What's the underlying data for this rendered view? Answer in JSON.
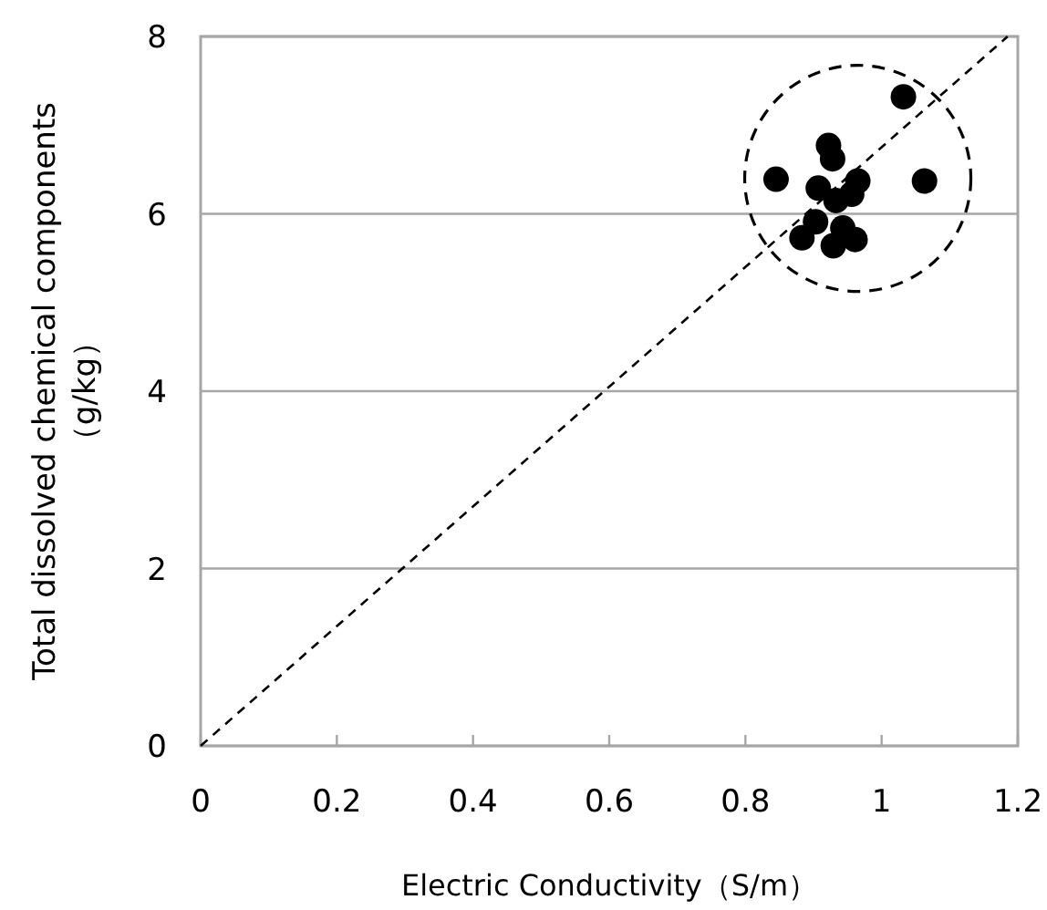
{
  "chart_data": {
    "type": "scatter",
    "xlabel": "Electric Conductivity（S/m）",
    "ylabel": "Total dissolved chemical components\n（g/kg）",
    "xlim": [
      0,
      1.2
    ],
    "xticks": [
      0,
      0.2,
      0.4,
      0.6,
      0.8,
      1,
      1.2
    ],
    "ylim": [
      0,
      8
    ],
    "yticks": [
      0,
      2,
      4,
      6,
      8
    ],
    "grid": "y",
    "series": [
      {
        "color": "#000000",
        "marker": "circle",
        "x": [
          1.032,
          0.845,
          1.063,
          0.922,
          0.928,
          0.965,
          0.907,
          0.883,
          0.961,
          0.929,
          0.933,
          0.943,
          0.956,
          0.903
        ],
        "values": [
          7.32,
          6.39,
          6.37,
          6.77,
          6.62,
          6.37,
          6.29,
          5.73,
          5.71,
          5.64,
          6.15,
          5.84,
          6.22,
          5.91
        ]
      },
      {
        "type": "line",
        "color": "#000000",
        "line_style": "dashed",
        "marker": "none",
        "x": [
          0,
          1.185
        ],
        "values": [
          0,
          8
        ]
      }
    ]
  }
}
